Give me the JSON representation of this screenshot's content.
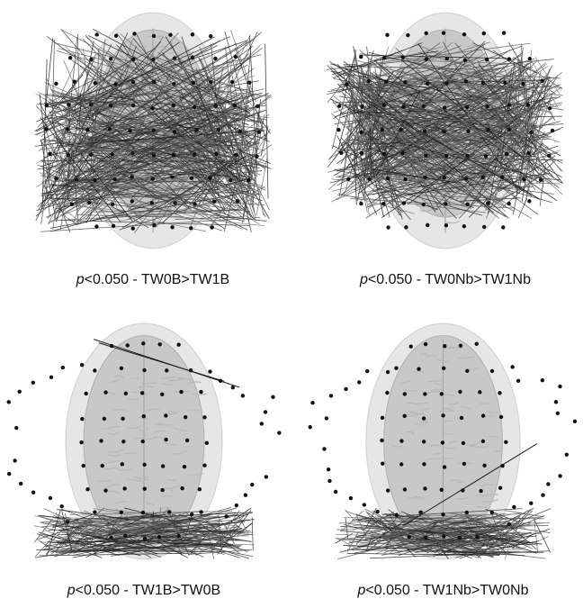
{
  "figure": {
    "panels": [
      {
        "p_symbol": "p",
        "label": "<0.050 - TW0B>TW1B",
        "view": "tilted",
        "connectivity": "dense-global"
      },
      {
        "p_symbol": "p",
        "label": "<0.050 - TW0Nb>TW1Nb",
        "view": "tilted",
        "connectivity": "dense-lateral"
      },
      {
        "p_symbol": "p",
        "label": "<0.050 - TW1B>TW0B",
        "view": "top",
        "connectivity": "posterior"
      },
      {
        "p_symbol": "p",
        "label": "<0.050 - TW1Nb>TW0Nb",
        "view": "top",
        "connectivity": "posterior"
      }
    ],
    "colors": {
      "electrode": "#111111",
      "edge": "#1a1a1a",
      "brain": "#c8c8c8",
      "scalp": "#e6e6e6"
    }
  }
}
